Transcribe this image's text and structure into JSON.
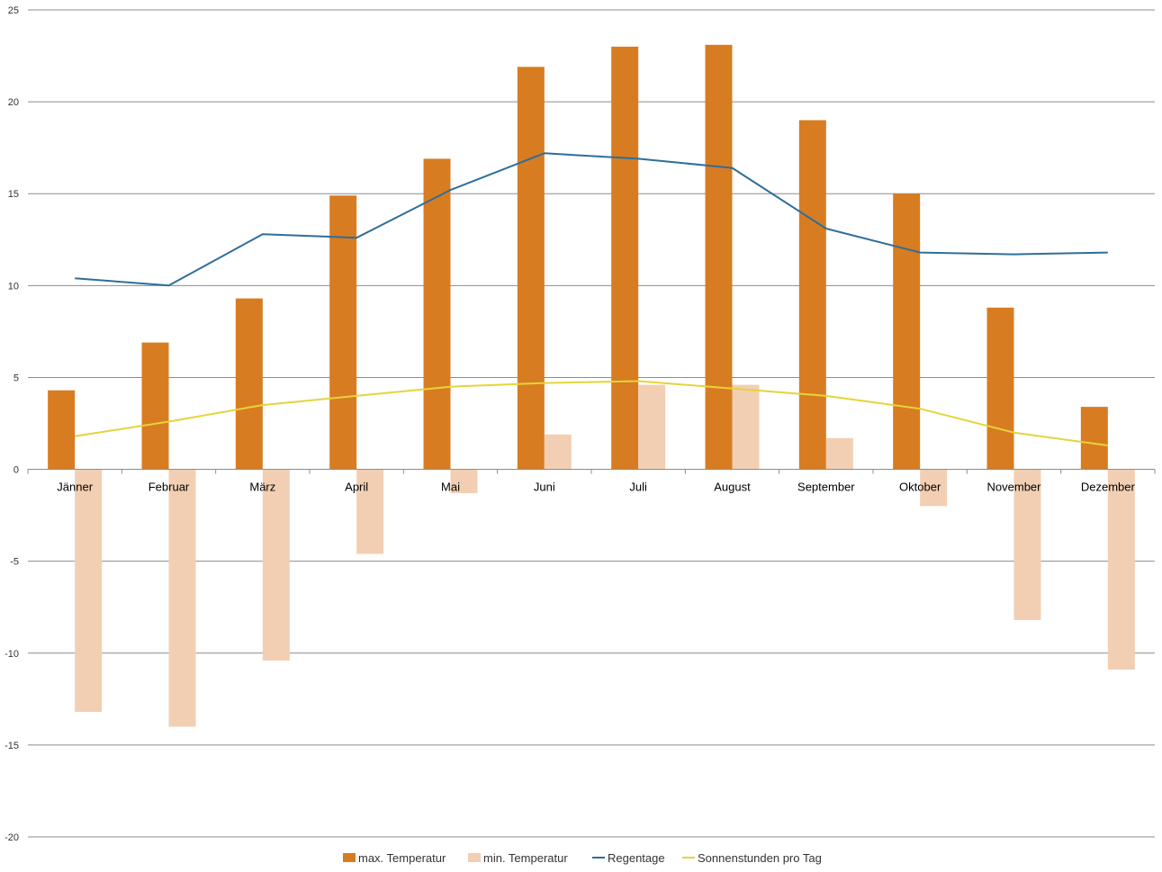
{
  "chart_data": {
    "type": "bar",
    "categories": [
      "Jänner",
      "Februar",
      "März",
      "April",
      "Mai",
      "Juni",
      "Juli",
      "August",
      "September",
      "Oktober",
      "November",
      "Dezember"
    ],
    "series": [
      {
        "name": "max. Temperatur",
        "type": "bar",
        "color": "#D87C21",
        "values": [
          4.3,
          6.9,
          9.3,
          14.9,
          16.9,
          21.9,
          23.0,
          23.1,
          19.0,
          15.0,
          8.8,
          3.4
        ]
      },
      {
        "name": "min. Temperatur",
        "type": "bar",
        "color": "#F2CFB3",
        "values": [
          -13.2,
          -14.0,
          -10.4,
          -4.6,
          -1.3,
          1.9,
          4.6,
          4.6,
          1.7,
          -2.0,
          -8.2,
          -10.9
        ]
      },
      {
        "name": "Regentage",
        "type": "line",
        "color": "#2E6E9A",
        "values": [
          10.4,
          10.0,
          12.8,
          12.6,
          15.2,
          17.2,
          16.9,
          16.4,
          13.1,
          11.8,
          11.7,
          11.8
        ]
      },
      {
        "name": "Sonnenstunden pro Tag",
        "type": "line",
        "color": "#E5D43A",
        "values": [
          1.8,
          2.6,
          3.5,
          4.0,
          4.5,
          4.7,
          4.8,
          4.4,
          4.0,
          3.3,
          2.0,
          1.3
        ]
      }
    ],
    "ylim": [
      -20,
      25
    ],
    "yticks": [
      "-20",
      "-15",
      "-10",
      "-5",
      "0",
      "5",
      "10",
      "15",
      "20",
      "25"
    ],
    "ytick_values": [
      -20,
      -15,
      -10,
      -5,
      0,
      5,
      10,
      15,
      20,
      25
    ],
    "grid": true,
    "legend_position": "bottom",
    "title": "",
    "xlabel": "",
    "ylabel": ""
  }
}
